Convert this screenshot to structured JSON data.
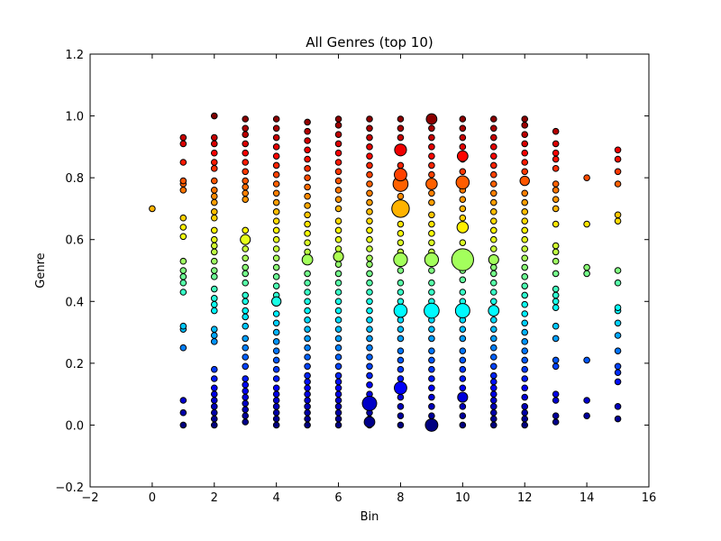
{
  "chart_data": {
    "type": "scatter",
    "title": "All Genres (top 10)",
    "xlabel": "Bin",
    "ylabel": "Genre",
    "xlim": [
      -2,
      16
    ],
    "ylim": [
      -0.2,
      1.2
    ],
    "xticks": [
      "−2",
      "0",
      "2",
      "4",
      "6",
      "8",
      "10",
      "12",
      "14",
      "16"
    ],
    "yticks": [
      "−0.2",
      "0.0",
      "0.2",
      "0.4",
      "0.6",
      "0.8",
      "1.0",
      "1.2"
    ],
    "xtick_values": [
      -2,
      0,
      2,
      4,
      6,
      8,
      10,
      12,
      14,
      16
    ],
    "ytick_values": [
      -0.2,
      0.0,
      0.2,
      0.4,
      0.6,
      0.8,
      1.0,
      1.2
    ],
    "grid": false,
    "colormap": "jet (color encodes Genre value)",
    "marker_edge_color": "#000000",
    "point_size_note": "marker area grows with count",
    "columns": [
      {
        "x": 0,
        "y": [
          0.7
        ]
      },
      {
        "x": 1,
        "y": [
          0.0,
          0.04,
          0.08,
          0.25,
          0.31,
          0.32,
          0.43,
          0.46,
          0.48,
          0.5,
          0.53,
          0.61,
          0.64,
          0.67,
          0.76,
          0.78,
          0.79,
          0.85,
          0.91,
          0.93
        ]
      },
      {
        "x": 2,
        "y": [
          0.0,
          0.02,
          0.04,
          0.06,
          0.08,
          0.1,
          0.12,
          0.15,
          0.18,
          0.27,
          0.29,
          0.31,
          0.37,
          0.39,
          0.41,
          0.44,
          0.48,
          0.5,
          0.53,
          0.56,
          0.58,
          0.6,
          0.63,
          0.67,
          0.69,
          0.72,
          0.74,
          0.76,
          0.79,
          0.83,
          0.85,
          0.88,
          0.91,
          0.93,
          1.0
        ]
      },
      {
        "x": 3,
        "y": [
          0.01,
          0.03,
          0.05,
          0.07,
          0.09,
          0.11,
          0.13,
          0.15,
          0.19,
          0.22,
          0.25,
          0.28,
          0.32,
          0.35,
          0.37,
          0.4,
          0.42,
          0.46,
          0.49,
          0.51,
          0.54,
          0.57,
          0.6,
          0.63,
          0.73,
          0.75,
          0.77,
          0.79,
          0.82,
          0.85,
          0.88,
          0.91,
          0.94,
          0.96,
          0.99
        ]
      },
      {
        "x": 4,
        "y": [
          0.0,
          0.02,
          0.04,
          0.06,
          0.08,
          0.1,
          0.12,
          0.15,
          0.18,
          0.21,
          0.24,
          0.27,
          0.3,
          0.33,
          0.36,
          0.4,
          0.42,
          0.45,
          0.48,
          0.51,
          0.54,
          0.57,
          0.6,
          0.63,
          0.66,
          0.69,
          0.72,
          0.75,
          0.78,
          0.81,
          0.84,
          0.87,
          0.9,
          0.93,
          0.96,
          0.99
        ]
      },
      {
        "x": 5,
        "y": [
          0.0,
          0.02,
          0.04,
          0.06,
          0.08,
          0.1,
          0.12,
          0.14,
          0.16,
          0.19,
          0.22,
          0.25,
          0.28,
          0.31,
          0.34,
          0.37,
          0.4,
          0.43,
          0.46,
          0.49,
          0.53,
          0.56,
          0.59,
          0.62,
          0.65,
          0.68,
          0.71,
          0.74,
          0.77,
          0.8,
          0.83,
          0.86,
          0.89,
          0.92,
          0.95,
          0.98
        ]
      },
      {
        "x": 6,
        "y": [
          0.0,
          0.02,
          0.04,
          0.06,
          0.08,
          0.1,
          0.12,
          0.14,
          0.16,
          0.19,
          0.22,
          0.25,
          0.28,
          0.31,
          0.34,
          0.37,
          0.4,
          0.43,
          0.46,
          0.49,
          0.52,
          0.54,
          0.57,
          0.6,
          0.63,
          0.66,
          0.7,
          0.73,
          0.76,
          0.79,
          0.82,
          0.85,
          0.88,
          0.91,
          0.94,
          0.97,
          0.99
        ]
      },
      {
        "x": 7,
        "y": [
          0.0,
          0.02,
          0.04,
          0.07,
          0.1,
          0.13,
          0.16,
          0.19,
          0.22,
          0.25,
          0.28,
          0.31,
          0.34,
          0.37,
          0.4,
          0.43,
          0.46,
          0.49,
          0.52,
          0.54,
          0.57,
          0.6,
          0.63,
          0.66,
          0.69,
          0.72,
          0.75,
          0.78,
          0.81,
          0.84,
          0.87,
          0.9,
          0.93,
          0.96,
          0.99
        ]
      },
      {
        "x": 8,
        "y": [
          0.0,
          0.03,
          0.06,
          0.09,
          0.12,
          0.15,
          0.18,
          0.21,
          0.24,
          0.28,
          0.31,
          0.34,
          0.37,
          0.4,
          0.43,
          0.46,
          0.5,
          0.53,
          0.56,
          0.59,
          0.62,
          0.65,
          0.7,
          0.74,
          0.78,
          0.81,
          0.84,
          0.89,
          0.93,
          0.96,
          0.99
        ]
      },
      {
        "x": 9,
        "y": [
          0.0,
          0.03,
          0.06,
          0.09,
          0.12,
          0.15,
          0.18,
          0.21,
          0.24,
          0.28,
          0.31,
          0.34,
          0.37,
          0.4,
          0.43,
          0.46,
          0.5,
          0.53,
          0.56,
          0.59,
          0.62,
          0.65,
          0.68,
          0.72,
          0.75,
          0.78,
          0.81,
          0.84,
          0.87,
          0.9,
          0.93,
          0.96,
          0.99
        ]
      },
      {
        "x": 10,
        "y": [
          0.0,
          0.03,
          0.06,
          0.09,
          0.12,
          0.15,
          0.18,
          0.21,
          0.24,
          0.28,
          0.31,
          0.34,
          0.37,
          0.4,
          0.43,
          0.47,
          0.5,
          0.53,
          0.56,
          0.59,
          0.64,
          0.67,
          0.7,
          0.73,
          0.76,
          0.79,
          0.82,
          0.86,
          0.9,
          0.93,
          0.96,
          0.99
        ]
      },
      {
        "x": 11,
        "y": [
          0.0,
          0.02,
          0.04,
          0.06,
          0.08,
          0.1,
          0.12,
          0.14,
          0.16,
          0.19,
          0.22,
          0.25,
          0.28,
          0.31,
          0.34,
          0.37,
          0.4,
          0.43,
          0.46,
          0.49,
          0.51,
          0.54,
          0.57,
          0.6,
          0.63,
          0.66,
          0.69,
          0.72,
          0.75,
          0.78,
          0.81,
          0.84,
          0.87,
          0.9,
          0.93,
          0.96,
          0.99
        ]
      },
      {
        "x": 12,
        "y": [
          0.0,
          0.02,
          0.04,
          0.06,
          0.09,
          0.12,
          0.15,
          0.18,
          0.21,
          0.24,
          0.27,
          0.3,
          0.33,
          0.36,
          0.39,
          0.42,
          0.45,
          0.48,
          0.51,
          0.54,
          0.57,
          0.6,
          0.63,
          0.66,
          0.69,
          0.72,
          0.75,
          0.79,
          0.82,
          0.85,
          0.88,
          0.91,
          0.94,
          0.97,
          0.99
        ]
      },
      {
        "x": 13,
        "y": [
          0.01,
          0.03,
          0.08,
          0.1,
          0.19,
          0.21,
          0.28,
          0.32,
          0.38,
          0.4,
          0.42,
          0.44,
          0.49,
          0.53,
          0.56,
          0.58,
          0.65,
          0.7,
          0.73,
          0.76,
          0.78,
          0.83,
          0.86,
          0.88,
          0.91,
          0.95
        ]
      },
      {
        "x": 14,
        "y": [
          0.03,
          0.08,
          0.21,
          0.49,
          0.51,
          0.65,
          0.8
        ]
      },
      {
        "x": 15,
        "y": [
          0.02,
          0.06,
          0.14,
          0.17,
          0.19,
          0.24,
          0.29,
          0.33,
          0.37,
          0.38,
          0.46,
          0.5,
          0.66,
          0.68,
          0.78,
          0.82,
          0.86,
          0.89
        ]
      }
    ],
    "large_points": [
      {
        "x": 7,
        "y": 0.07,
        "size": 2.3
      },
      {
        "x": 7,
        "y": 0.01,
        "size": 1.7
      },
      {
        "x": 5,
        "y": 0.535,
        "size": 1.7
      },
      {
        "x": 6,
        "y": 0.545,
        "size": 1.6
      },
      {
        "x": 8,
        "y": 0.7,
        "size": 2.8
      },
      {
        "x": 8,
        "y": 0.78,
        "size": 2.4
      },
      {
        "x": 8,
        "y": 0.81,
        "size": 2.0
      },
      {
        "x": 8,
        "y": 0.89,
        "size": 1.9
      },
      {
        "x": 8,
        "y": 0.535,
        "size": 2.2
      },
      {
        "x": 8,
        "y": 0.37,
        "size": 2.1
      },
      {
        "x": 8,
        "y": 0.12,
        "size": 2.0
      },
      {
        "x": 9,
        "y": 0.0,
        "size": 2.0
      },
      {
        "x": 9,
        "y": 0.535,
        "size": 2.2
      },
      {
        "x": 9,
        "y": 0.37,
        "size": 2.4
      },
      {
        "x": 9,
        "y": 0.78,
        "size": 1.8
      },
      {
        "x": 9,
        "y": 0.99,
        "size": 1.7
      },
      {
        "x": 10,
        "y": 0.535,
        "size": 3.5
      },
      {
        "x": 10,
        "y": 0.785,
        "size": 2.1
      },
      {
        "x": 10,
        "y": 0.37,
        "size": 2.3
      },
      {
        "x": 10,
        "y": 0.64,
        "size": 1.8
      },
      {
        "x": 10,
        "y": 0.87,
        "size": 1.7
      },
      {
        "x": 10,
        "y": 0.09,
        "size": 1.6
      },
      {
        "x": 11,
        "y": 0.37,
        "size": 1.7
      },
      {
        "x": 11,
        "y": 0.535,
        "size": 1.6
      },
      {
        "x": 12,
        "y": 0.79,
        "size": 1.5
      },
      {
        "x": 3,
        "y": 0.6,
        "size": 1.6
      },
      {
        "x": 4,
        "y": 0.4,
        "size": 1.5
      }
    ]
  }
}
